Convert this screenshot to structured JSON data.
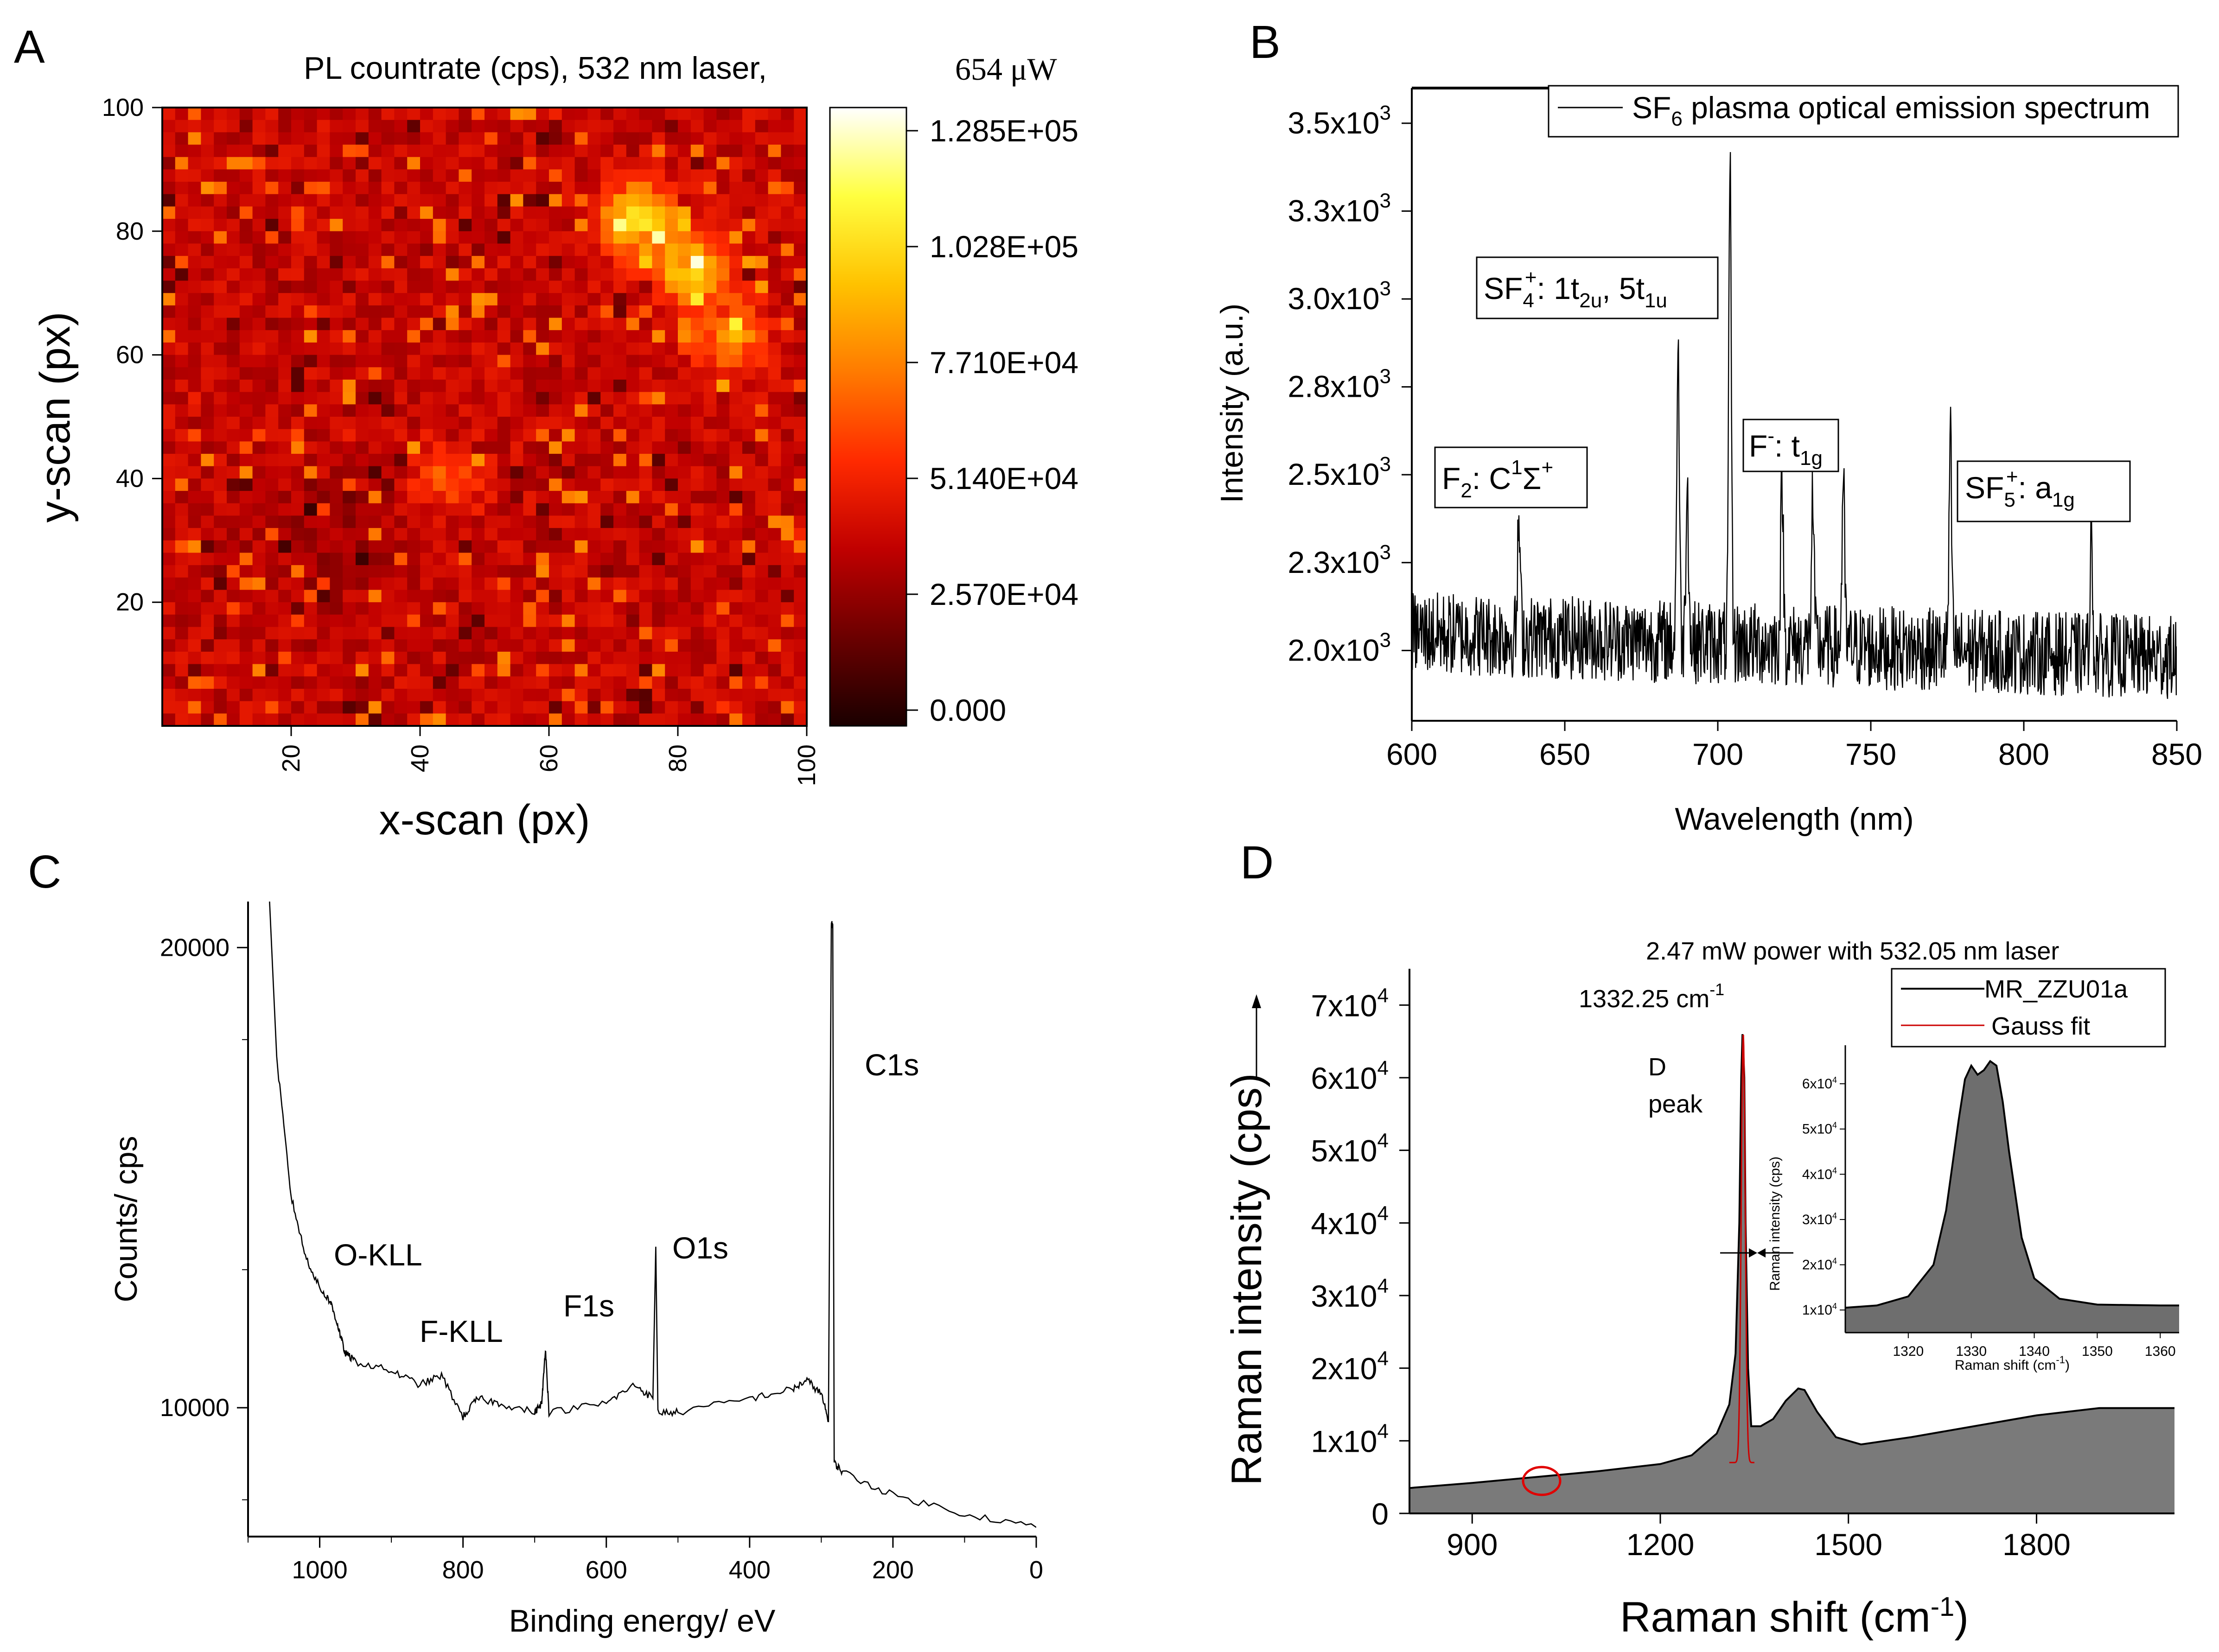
{
  "figure": {
    "panels": [
      "A",
      "B",
      "C",
      "D"
    ]
  },
  "chart_data": [
    {
      "panel": "A",
      "type": "heatmap",
      "title": "PL countrate (cps), 532 nm laser,",
      "title_power": "654 μW",
      "xlabel": "x-scan (px)",
      "ylabel": "y-scan (px)",
      "xlim": [
        0,
        100
      ],
      "ylim": [
        0,
        100
      ],
      "xticks": [
        "20",
        "40",
        "60",
        "80",
        "100"
      ],
      "yticks": [
        "20",
        "40",
        "60",
        "80",
        "100"
      ],
      "colorbar": {
        "range": [
          0,
          128500
        ],
        "ticks": [
          "0.000",
          "2.570E+04",
          "5.140E+04",
          "7.710E+04",
          "1.028E+05",
          "1.285E+05"
        ],
        "colors": [
          "#1a0000",
          "#6b0000",
          "#c00000",
          "#ff2a00",
          "#ff7a00",
          "#ffc200",
          "#ffff40",
          "#ffffff"
        ]
      },
      "hotspots": [
        {
          "x": 74,
          "y": 82,
          "level": 0.85
        },
        {
          "x": 82,
          "y": 74,
          "level": 0.75
        },
        {
          "x": 88,
          "y": 63,
          "level": 0.65
        },
        {
          "x": 44,
          "y": 40,
          "level": 0.5
        }
      ],
      "mean_level": 0.3
    },
    {
      "panel": "B",
      "type": "line",
      "xlabel": "Wavelength (nm)",
      "ylabel": "Intensity (a.u.)",
      "xlim": [
        600,
        850
      ],
      "ylim": [
        1800,
        3600
      ],
      "xticks": [
        "600",
        "650",
        "700",
        "750",
        "800",
        "850"
      ],
      "yticks": [
        {
          "value": 2000,
          "mant": "2.0x10",
          "exp": "3"
        },
        {
          "value": 2250,
          "mant": "2.3x10",
          "exp": "3"
        },
        {
          "value": 2500,
          "mant": "2.5x10",
          "exp": "3"
        },
        {
          "value": 2750,
          "mant": "2.8x10",
          "exp": "3"
        },
        {
          "value": 3000,
          "mant": "3.0x10",
          "exp": "3"
        },
        {
          "value": 3250,
          "mant": "3.3x10",
          "exp": "3"
        },
        {
          "value": 3500,
          "mant": "3.5x10",
          "exp": "3"
        }
      ],
      "legend": {
        "prefix": "SF",
        "sub": "6",
        "rest": " plasma optical emission spectrum"
      },
      "baseline": 2050,
      "noise": 120,
      "peaks": [
        {
          "x": 635,
          "y": 2370
        },
        {
          "x": 687,
          "y": 2900
        },
        {
          "x": 690,
          "y": 2530
        },
        {
          "x": 704,
          "y": 3370
        },
        {
          "x": 721,
          "y": 2520
        },
        {
          "x": 731,
          "y": 2460
        },
        {
          "x": 741,
          "y": 2520
        },
        {
          "x": 776,
          "y": 2640
        },
        {
          "x": 822,
          "y": 2380
        }
      ],
      "annotations": {
        "f2": {
          "main": "F",
          "sub": "2",
          "mid": ": C",
          "sup": "1",
          "tail": "Σ",
          "sup2": "+"
        },
        "sf4": {
          "main": "SF",
          "sub": "4",
          "sup": "+",
          "mid": ": 1t",
          "sub2": "2u",
          "mid2": ", 5t",
          "sub3": "1u"
        },
        "fminus": {
          "main": "F",
          "sup": "-",
          "mid": ": t",
          "sub": "1g"
        },
        "sf5": {
          "main": "SF",
          "sub": "5",
          "sup": "+",
          "mid": ": a",
          "sub2": "1g"
        }
      }
    },
    {
      "panel": "C",
      "type": "line",
      "xlabel": "Binding energy/ eV",
      "ylabel": "Counts/ cps",
      "xlim": [
        1100,
        0
      ],
      "ylim": [
        7200,
        21000
      ],
      "xticks": [
        "1000",
        "800",
        "600",
        "400",
        "200",
        "0"
      ],
      "yticks": [
        {
          "value": 10000,
          "label": "10000"
        },
        {
          "value": 20000,
          "label": "20000"
        }
      ],
      "series": [
        {
          "x": [
            1070,
            1060,
            1040,
            1020,
            1000,
            985,
            975,
            965,
            950,
            900,
            860,
            830,
            800,
            780,
            750,
            700,
            690,
            685,
            680,
            600,
            560,
            535,
            531,
            528,
            500,
            400,
            340,
            320,
            300,
            290,
            286,
            284,
            282,
            270,
            200,
            100,
            0
          ],
          "y": [
            21000,
            17600,
            14600,
            13300,
            12600,
            12300,
            11800,
            11200,
            11000,
            10800,
            10500,
            10700,
            9800,
            10200,
            10100,
            9900,
            10100,
            11300,
            9900,
            10100,
            10500,
            10200,
            13500,
            9900,
            9900,
            10200,
            10400,
            10600,
            10300,
            9700,
            20500,
            20500,
            8800,
            8600,
            8100,
            7700,
            7400
          ]
        }
      ],
      "annotations": [
        "O-KLL",
        "F-KLL",
        "F1s",
        "O1s",
        "C1s"
      ]
    },
    {
      "panel": "D",
      "type": "area",
      "title": "2.47 mW power with 532.05 nm laser",
      "xlabel": "Raman shift (cm",
      "xlabel_sup": "-1",
      "xlabel_close": ")",
      "ylabel": "Raman intensity (cps)",
      "xlim": [
        800,
        2020
      ],
      "ylim": [
        0,
        75000
      ],
      "xticks": [
        "900",
        "1200",
        "1500",
        "1800"
      ],
      "yticks": [
        {
          "value": 0,
          "mant": "0",
          "exp": ""
        },
        {
          "value": 10000,
          "mant": "1x10",
          "exp": "4"
        },
        {
          "value": 20000,
          "mant": "2x10",
          "exp": "4"
        },
        {
          "value": 30000,
          "mant": "3x10",
          "exp": "4"
        },
        {
          "value": 40000,
          "mant": "4x10",
          "exp": "4"
        },
        {
          "value": 50000,
          "mant": "5x10",
          "exp": "4"
        },
        {
          "value": 60000,
          "mant": "6x10",
          "exp": "4"
        },
        {
          "value": 70000,
          "mant": "7x10",
          "exp": "4"
        }
      ],
      "series": [
        {
          "name": "MR_ZZU01a",
          "color": "#000000",
          "x": [
            800,
            900,
            1000,
            1100,
            1200,
            1250,
            1290,
            1310,
            1320,
            1326,
            1329,
            1331,
            1332.25,
            1334,
            1336,
            1340,
            1345,
            1360,
            1380,
            1400,
            1420,
            1430,
            1450,
            1480,
            1520,
            1600,
            1700,
            1800,
            1900,
            2020
          ],
          "y": [
            3500,
            4200,
            5000,
            5800,
            6800,
            8000,
            11000,
            15000,
            22000,
            40000,
            60000,
            66000,
            64000,
            60000,
            40000,
            20000,
            12000,
            12000,
            13000,
            15500,
            17200,
            17000,
            14000,
            10500,
            9500,
            10500,
            12000,
            13500,
            14500,
            14500
          ]
        },
        {
          "name": "Gauss fit",
          "color": "#cc0000"
        }
      ],
      "peak_label": {
        "value": "1332.25 cm",
        "sup": "-1"
      },
      "d_peak_label": [
        "D",
        "peak"
      ],
      "inset": {
        "xlabel": "Raman shift (cm",
        "xlabel_sup": "-1",
        "xlabel_close": ")",
        "ylabel": "Raman intensity (cps)",
        "xlim": [
          1310,
          1363
        ],
        "ylim": [
          5000,
          68000
        ],
        "xticks": [
          "1320",
          "1330",
          "1340",
          "1350",
          "1360"
        ],
        "yticks": [
          {
            "value": 10000,
            "mant": "1x10",
            "exp": "4"
          },
          {
            "value": 20000,
            "mant": "2x10",
            "exp": "4"
          },
          {
            "value": 30000,
            "mant": "3x10",
            "exp": "4"
          },
          {
            "value": 40000,
            "mant": "4x10",
            "exp": "4"
          },
          {
            "value": 50000,
            "mant": "5x10",
            "exp": "4"
          },
          {
            "value": 60000,
            "mant": "6x10",
            "exp": "4"
          }
        ],
        "x": [
          1310,
          1315,
          1320,
          1324,
          1326,
          1328,
          1329,
          1330,
          1331,
          1332,
          1333,
          1334,
          1335,
          1336,
          1338,
          1340,
          1344,
          1350,
          1360,
          1363
        ],
        "y": [
          10500,
          11000,
          13000,
          20000,
          32000,
          52000,
          61000,
          64000,
          62000,
          63000,
          65000,
          64000,
          56000,
          45000,
          26000,
          17000,
          12500,
          11200,
          11000,
          11000
        ]
      }
    }
  ]
}
